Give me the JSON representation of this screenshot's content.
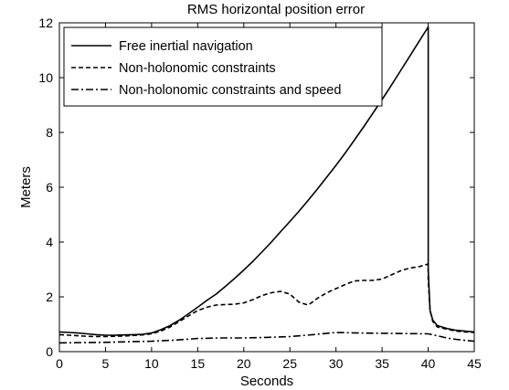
{
  "chart_data": {
    "type": "line",
    "title": "RMS horizontal position error",
    "xlabel": "Seconds",
    "ylabel": "Meters",
    "xlim": [
      0,
      45
    ],
    "ylim": [
      0,
      12
    ],
    "xticks": [
      0,
      5,
      10,
      15,
      20,
      25,
      30,
      35,
      40,
      45
    ],
    "yticks": [
      0,
      2,
      4,
      6,
      8,
      10,
      12
    ],
    "grid": false,
    "legend_position": "top-left",
    "series": [
      {
        "name": "Free inertial navigation",
        "style": "solid",
        "x": [
          0,
          1,
          2,
          3,
          4,
          5,
          6,
          7,
          8,
          9,
          10,
          11,
          12,
          13,
          14,
          15,
          16,
          17,
          18,
          19,
          20,
          21,
          22,
          23,
          24,
          25,
          26,
          27,
          28,
          29,
          30,
          31,
          32,
          33,
          34,
          35,
          36,
          37,
          38,
          39,
          40,
          40,
          40.2,
          40.5,
          41,
          42,
          43,
          44,
          45
        ],
        "y": [
          0.72,
          0.7,
          0.68,
          0.65,
          0.62,
          0.6,
          0.6,
          0.61,
          0.62,
          0.63,
          0.68,
          0.8,
          0.95,
          1.15,
          1.38,
          1.62,
          1.87,
          2.1,
          2.38,
          2.67,
          2.98,
          3.3,
          3.65,
          4.0,
          4.38,
          4.75,
          5.13,
          5.53,
          5.94,
          6.37,
          6.8,
          7.25,
          7.72,
          8.2,
          8.7,
          9.2,
          9.72,
          10.25,
          10.78,
          11.32,
          11.85,
          3.0,
          1.5,
          1.15,
          0.95,
          0.85,
          0.78,
          0.75,
          0.72
        ]
      },
      {
        "name": "Non-holonomic constraints",
        "style": "dashed",
        "x": [
          0,
          1,
          2,
          3,
          4,
          5,
          6,
          7,
          8,
          9,
          10,
          11,
          12,
          13,
          14,
          15,
          16,
          17,
          18,
          19,
          20,
          21,
          22,
          23,
          24,
          25,
          26,
          27,
          28,
          29,
          30,
          31,
          32,
          33,
          34,
          35,
          36,
          37,
          38,
          39,
          40,
          40,
          40.2,
          40.5,
          41,
          42,
          43,
          44,
          45
        ],
        "y": [
          0.62,
          0.6,
          0.58,
          0.56,
          0.55,
          0.55,
          0.56,
          0.57,
          0.59,
          0.61,
          0.65,
          0.75,
          0.9,
          1.1,
          1.3,
          1.5,
          1.62,
          1.7,
          1.72,
          1.73,
          1.78,
          1.9,
          2.05,
          2.15,
          2.2,
          2.1,
          1.8,
          1.7,
          1.95,
          2.15,
          2.3,
          2.45,
          2.58,
          2.6,
          2.6,
          2.65,
          2.8,
          2.95,
          3.05,
          3.1,
          3.2,
          2.6,
          1.5,
          1.1,
          0.9,
          0.82,
          0.75,
          0.72,
          0.7
        ]
      },
      {
        "name": "Non-holonomic constraints and speed",
        "style": "dashdot",
        "x": [
          0,
          2.5,
          5,
          7.5,
          10,
          12.5,
          15,
          17.5,
          20,
          22.5,
          25,
          27.5,
          30,
          32.5,
          35,
          37.5,
          40,
          41,
          42,
          43,
          44,
          45
        ],
        "y": [
          0.32,
          0.33,
          0.34,
          0.36,
          0.38,
          0.42,
          0.48,
          0.5,
          0.5,
          0.52,
          0.55,
          0.62,
          0.7,
          0.68,
          0.67,
          0.66,
          0.65,
          0.58,
          0.5,
          0.45,
          0.41,
          0.38
        ]
      }
    ]
  }
}
